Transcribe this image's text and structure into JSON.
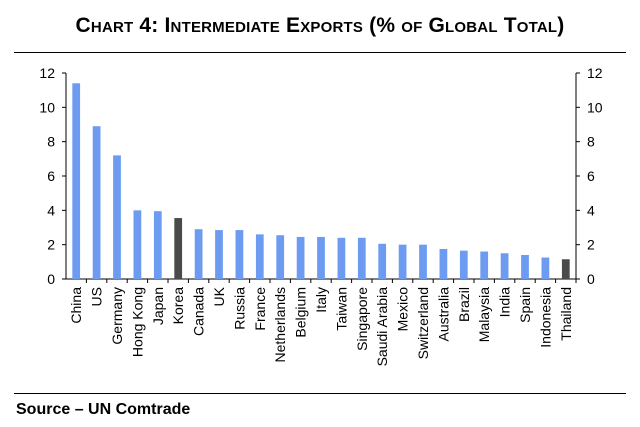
{
  "title": "Chart 4: Intermediate Exports (% of Global Total)",
  "source": "Source – UN Comtrade",
  "chart_data": {
    "type": "bar",
    "title": "Chart 4: Intermediate Exports (% of Global Total)",
    "xlabel": "",
    "ylabel": "",
    "ylim": [
      0,
      12
    ],
    "yticks": [
      0,
      2,
      4,
      6,
      8,
      10,
      12
    ],
    "grid": false,
    "categories": [
      "China",
      "US",
      "Germany",
      "Hong Kong",
      "Japan",
      "Korea",
      "Canada",
      "UK",
      "Russia",
      "France",
      "Netherlands",
      "Belgium",
      "Italy",
      "Taiwan",
      "Singapore",
      "Saudi Arabia",
      "Mexico",
      "Switzerland",
      "Australia",
      "Brazil",
      "Malaysia",
      "India",
      "Spain",
      "Indonesia",
      "Thailand"
    ],
    "values": [
      11.4,
      8.9,
      7.2,
      4.0,
      3.95,
      3.55,
      2.9,
      2.85,
      2.85,
      2.6,
      2.55,
      2.45,
      2.45,
      2.4,
      2.4,
      2.05,
      2.0,
      2.0,
      1.75,
      1.65,
      1.6,
      1.5,
      1.4,
      1.25,
      1.15
    ],
    "highlighted": [
      "Korea",
      "Thailand"
    ],
    "colors": {
      "bar": "#6d9bf1",
      "highlight": "#4a4a4a"
    }
  }
}
